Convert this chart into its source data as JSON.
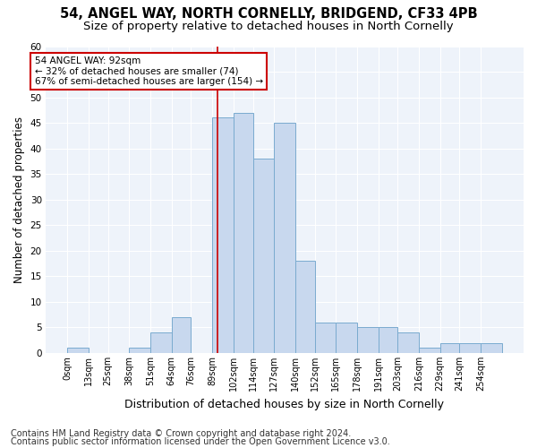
{
  "title1": "54, ANGEL WAY, NORTH CORNELLY, BRIDGEND, CF33 4PB",
  "title2": "Size of property relative to detached houses in North Cornelly",
  "xlabel": "Distribution of detached houses by size in North Cornelly",
  "ylabel": "Number of detached properties",
  "footnote1": "Contains HM Land Registry data © Crown copyright and database right 2024.",
  "footnote2": "Contains public sector information licensed under the Open Government Licence v3.0.",
  "bar_color": "#c8d8ee",
  "bar_edge_color": "#7aabcf",
  "vline_x": 92,
  "vline_color": "#cc0000",
  "annotation_text": "54 ANGEL WAY: 92sqm\n← 32% of detached houses are smaller (74)\n67% of semi-detached houses are larger (154) →",
  "annotation_box_color": "#ffffff",
  "annotation_box_edge": "#cc0000",
  "bin_edges": [
    0,
    13,
    25,
    38,
    51,
    64,
    76,
    89,
    102,
    114,
    127,
    140,
    152,
    165,
    178,
    191,
    203,
    216,
    229,
    241,
    254,
    267
  ],
  "bar_heights": [
    1,
    0,
    0,
    1,
    4,
    7,
    0,
    46,
    47,
    38,
    45,
    18,
    6,
    6,
    5,
    5,
    4,
    1,
    2,
    2,
    2
  ],
  "ylim": [
    0,
    60
  ],
  "yticks": [
    0,
    5,
    10,
    15,
    20,
    25,
    30,
    35,
    40,
    45,
    50,
    55,
    60
  ],
  "xtick_labels": [
    "0sqm",
    "13sqm",
    "25sqm",
    "38sqm",
    "51sqm",
    "64sqm",
    "76sqm",
    "89sqm",
    "102sqm",
    "114sqm",
    "127sqm",
    "140sqm",
    "152sqm",
    "165sqm",
    "178sqm",
    "191sqm",
    "203sqm",
    "216sqm",
    "229sqm",
    "241sqm",
    "254sqm"
  ],
  "background_color": "#ffffff",
  "plot_bg_color": "#eef3fa",
  "grid_color": "#ffffff",
  "title1_fontsize": 10.5,
  "title2_fontsize": 9.5,
  "xlabel_fontsize": 9,
  "ylabel_fontsize": 8.5,
  "footnote_fontsize": 7
}
